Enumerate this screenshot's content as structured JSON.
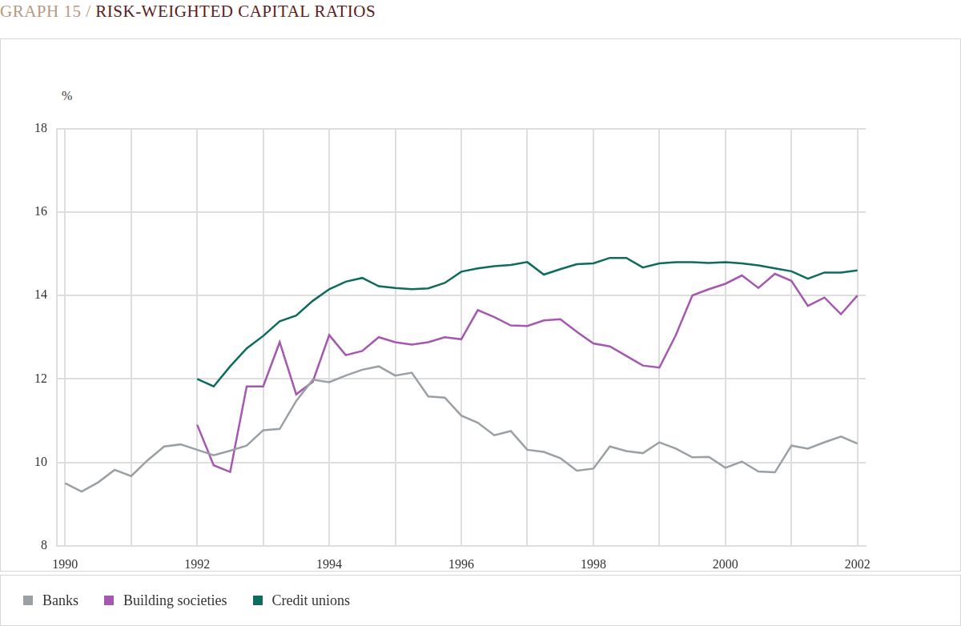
{
  "chart_data": {
    "type": "line",
    "title": "GRAPH 15 / RISK-WEIGHTED CAPITAL RATIOS",
    "y_label": "%",
    "categories": [
      "1990",
      null,
      null,
      null,
      null,
      null,
      null,
      null,
      "1992",
      null,
      null,
      null,
      null,
      null,
      null,
      null,
      "1994",
      null,
      null,
      null,
      null,
      null,
      null,
      null,
      "1996",
      null,
      null,
      null,
      null,
      null,
      null,
      null,
      "1998",
      null,
      null,
      null,
      null,
      null,
      null,
      null,
      "2000",
      null,
      null,
      null,
      null,
      null,
      null,
      null,
      "2002"
    ],
    "series": [
      {
        "name": "Banks",
        "color": "#9aa0a3",
        "values": [
          9.5,
          9.3,
          9.52,
          9.82,
          9.67,
          10.05,
          10.38,
          10.43,
          10.3,
          10.17,
          10.28,
          10.4,
          10.77,
          10.8,
          11.47,
          11.98,
          11.92,
          12.08,
          12.22,
          12.3,
          12.08,
          12.15,
          11.58,
          11.55,
          11.12,
          10.95,
          10.65,
          10.75,
          10.3,
          10.25,
          10.1,
          9.8,
          9.85,
          10.38,
          10.27,
          10.22,
          10.48,
          10.33,
          10.12,
          10.13,
          9.87,
          10.02,
          9.78,
          9.76,
          10.4,
          10.33,
          10.48,
          10.62,
          10.45
        ]
      },
      {
        "name": "Building societies",
        "color": "#a558b0",
        "values": [
          null,
          null,
          null,
          null,
          null,
          null,
          null,
          null,
          10.9,
          9.93,
          9.77,
          11.82,
          11.82,
          12.88,
          11.63,
          11.93,
          13.05,
          12.57,
          12.67,
          13.0,
          12.88,
          12.82,
          12.88,
          13.0,
          12.95,
          13.65,
          13.48,
          13.28,
          13.27,
          13.4,
          13.43,
          13.13,
          12.85,
          12.78,
          12.55,
          12.32,
          12.27,
          13.05,
          14.0,
          14.15,
          14.28,
          14.48,
          14.18,
          14.52,
          14.35,
          13.75,
          13.95,
          13.55,
          14.0
        ]
      },
      {
        "name": "Credit unions",
        "color": "#0e6b5e",
        "values": [
          null,
          null,
          null,
          null,
          null,
          null,
          null,
          null,
          12.0,
          11.82,
          12.3,
          12.73,
          13.03,
          13.38,
          13.52,
          13.87,
          14.15,
          14.33,
          14.42,
          14.22,
          14.18,
          14.15,
          14.17,
          14.3,
          14.57,
          14.65,
          14.7,
          14.73,
          14.8,
          14.5,
          14.63,
          14.75,
          14.77,
          14.9,
          14.9,
          14.67,
          14.77,
          14.8,
          14.8,
          14.78,
          14.8,
          14.77,
          14.72,
          14.65,
          14.58,
          14.4,
          14.55,
          14.55,
          14.6
        ]
      }
    ],
    "ylim": [
      8,
      18
    ],
    "yticks": [
      8,
      10,
      12,
      14,
      16,
      18
    ],
    "grid": true,
    "legend": "bottom"
  }
}
